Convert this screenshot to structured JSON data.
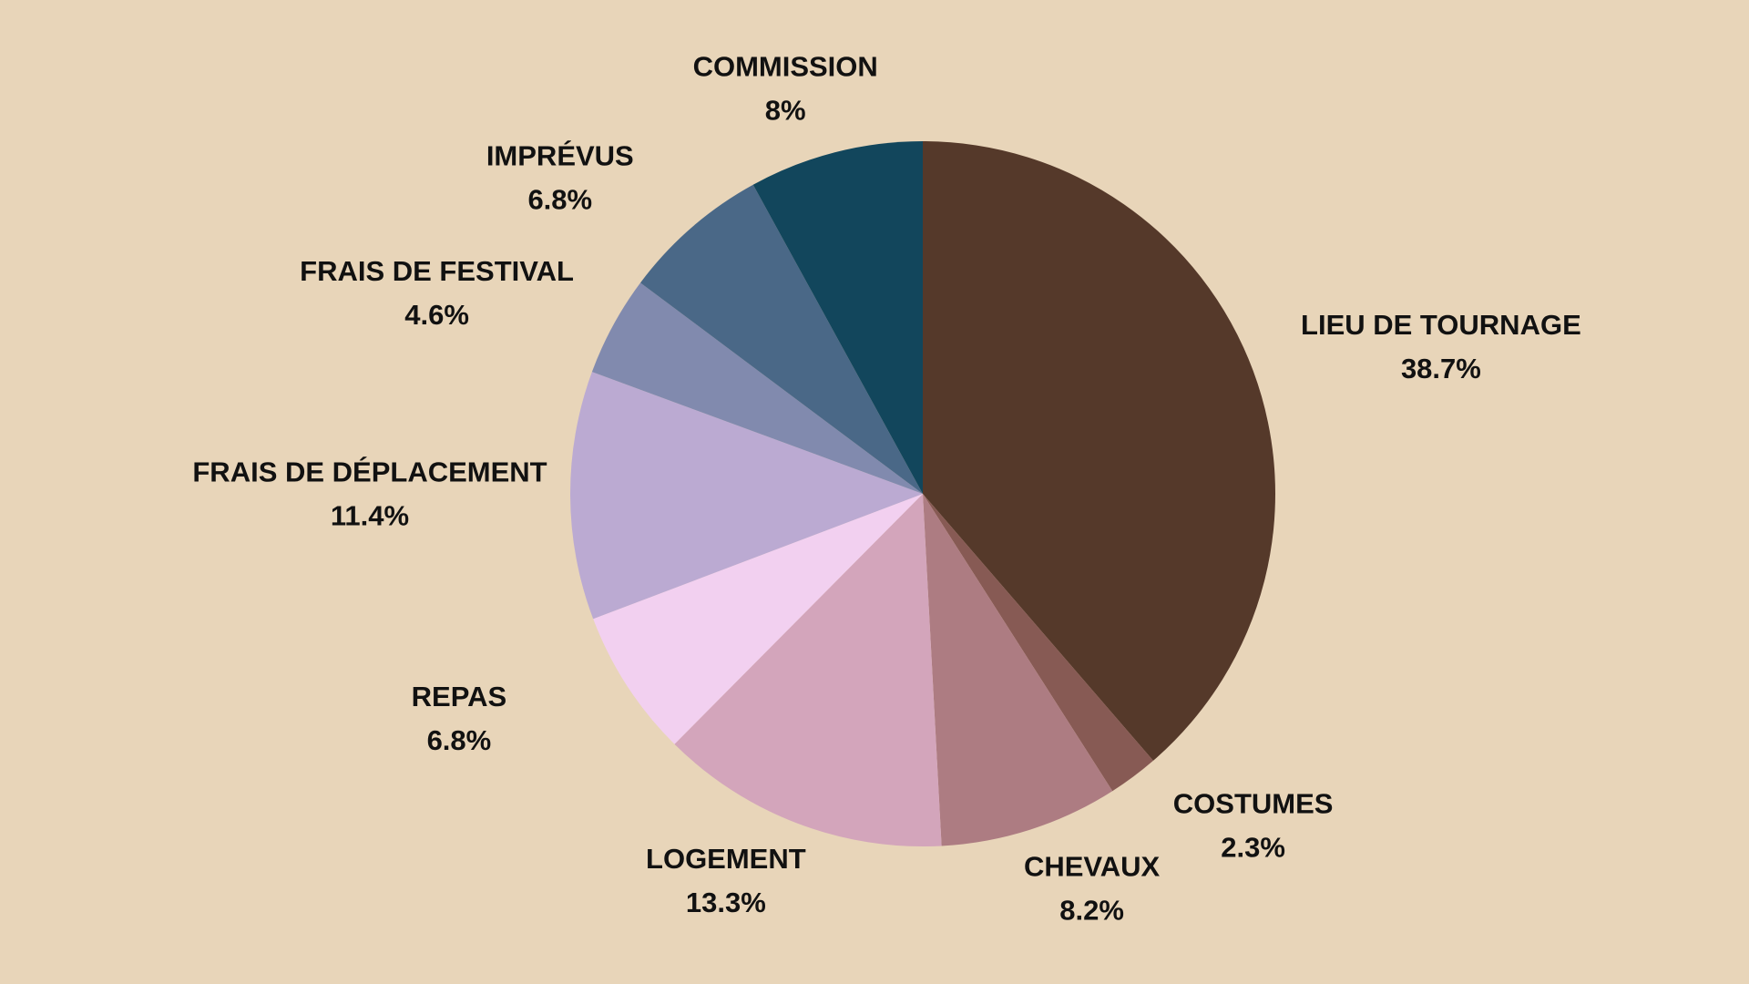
{
  "chart_data": {
    "type": "pie",
    "categories": [
      "LIEU DE TOURNAGE",
      "COSTUMES",
      "CHEVAUX",
      "LOGEMENT",
      "REPAS",
      "FRAIS DE DÉPLACEMENT",
      "FRAIS DE FESTIVAL",
      "IMPRÉVUS",
      "COMMISSION"
    ],
    "values": [
      38.7,
      2.3,
      8.2,
      13.3,
      6.8,
      11.4,
      4.6,
      6.8,
      8
    ],
    "value_labels": [
      "38.7%",
      "2.3%",
      "8.2%",
      "13.3%",
      "6.8%",
      "11.4%",
      "4.6%",
      "6.8%",
      "8%"
    ],
    "colors": [
      "#55392a",
      "#875a54",
      "#ad7c82",
      "#d3a5bb",
      "#f2d0f0",
      "#bbaad2",
      "#818aae",
      "#4a6887",
      "#12465c"
    ]
  }
}
